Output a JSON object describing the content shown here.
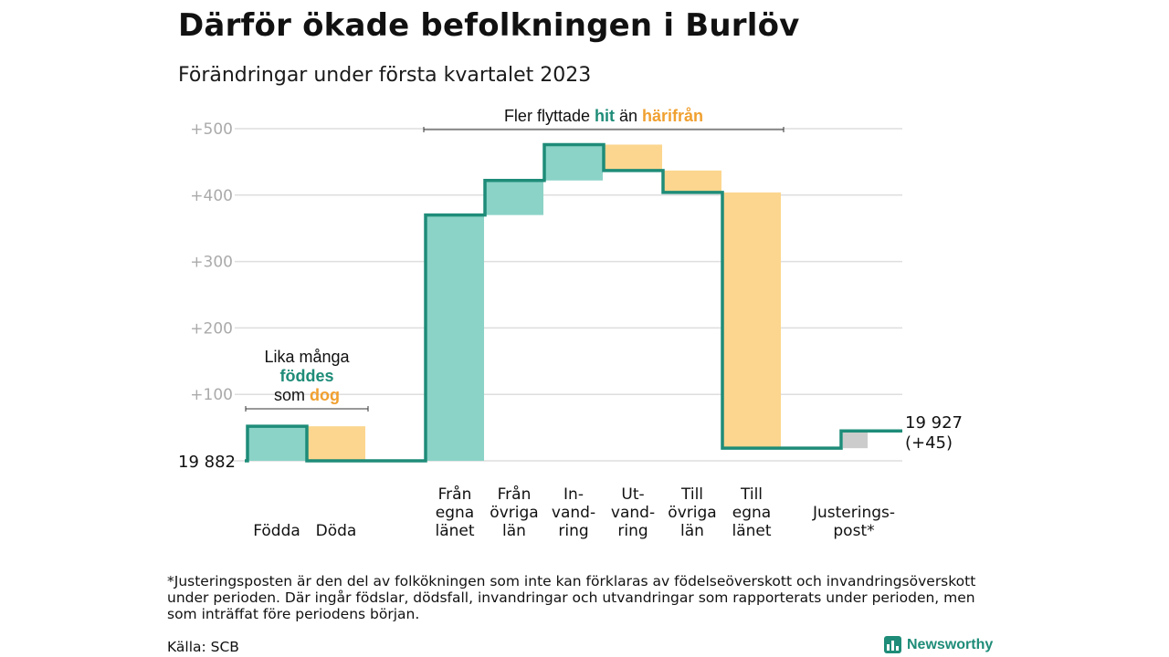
{
  "title": "Därför ökade befolkningen i Burlöv",
  "subtitle": "Förändringar under första kvartalet 2023",
  "footnote": "*Justeringsposten är den del av folkökningen som inte kan förklaras av födelseöverskott och invandringsöverskott under perioden. Där ingår födslar, dödsfall, invandringar och utvandringar som rapporterats under perioden, men som inträffat före periodens början.",
  "source": "Källa: SCB",
  "brand": "Newsworthy",
  "colors": {
    "increase": "#8bd3c7",
    "decrease": "#fcd68e",
    "adjustment": "#cccccc",
    "line": "#1e8c78",
    "orange_text": "#f0a030",
    "teal_text": "#1e8c78",
    "grid": "#dedede",
    "tick": "#aaaaaa"
  },
  "chart_data": {
    "type": "waterfall",
    "start_label": "19 882",
    "end_label_lines": [
      "19 927",
      "(+45)"
    ],
    "y_ticks": [
      {
        "value": 100,
        "label": "+100"
      },
      {
        "value": 200,
        "label": "+200"
      },
      {
        "value": 300,
        "label": "+300"
      },
      {
        "value": 400,
        "label": "+400"
      },
      {
        "value": 500,
        "label": "+500"
      }
    ],
    "ylim": [
      0,
      500
    ],
    "bars": [
      {
        "label_lines": [
          "Födda"
        ],
        "from": 0,
        "to": 52,
        "kind": "increase"
      },
      {
        "label_lines": [
          "Döda"
        ],
        "from": 52,
        "to": 0,
        "kind": "decrease"
      },
      {
        "label_lines": [],
        "from": 0,
        "to": 0,
        "kind": "none"
      },
      {
        "label_lines": [
          "Från",
          "egna",
          "länet"
        ],
        "from": 0,
        "to": 370,
        "kind": "increase"
      },
      {
        "label_lines": [
          "Från",
          "övriga",
          "län"
        ],
        "from": 370,
        "to": 422,
        "kind": "increase"
      },
      {
        "label_lines": [
          "In-",
          "vand-",
          "ring"
        ],
        "from": 422,
        "to": 476,
        "kind": "increase"
      },
      {
        "label_lines": [
          "Ut-",
          "vand-",
          "ring"
        ],
        "from": 476,
        "to": 437,
        "kind": "decrease"
      },
      {
        "label_lines": [
          "Till",
          "övriga",
          "län"
        ],
        "from": 437,
        "to": 404,
        "kind": "decrease"
      },
      {
        "label_lines": [
          "Till",
          "egna",
          "länet"
        ],
        "from": 404,
        "to": 19,
        "kind": "decrease"
      },
      {
        "label_lines": [],
        "from": 19,
        "to": 19,
        "kind": "none"
      },
      {
        "label_lines": [
          "Justerings-",
          "post*"
        ],
        "from": 19,
        "to": 45,
        "kind": "adjustment"
      }
    ],
    "annotations": [
      {
        "id": "births-deaths",
        "lines": [
          [
            {
              "text": "Lika många",
              "color": "plain"
            }
          ],
          [
            {
              "text": "föddes",
              "color": "teal"
            }
          ],
          [
            {
              "text": "som ",
              "color": "plain"
            },
            {
              "text": "dog",
              "color": "orange"
            }
          ]
        ],
        "span": [
          0,
          1
        ]
      },
      {
        "id": "migration",
        "lines": [
          [
            {
              "text": "Fler flyttade ",
              "color": "plain"
            },
            {
              "text": "hit",
              "color": "teal"
            },
            {
              "text": " än ",
              "color": "plain"
            },
            {
              "text": "härifrån",
              "color": "orange"
            }
          ]
        ],
        "span": [
          3,
          8
        ]
      }
    ]
  }
}
